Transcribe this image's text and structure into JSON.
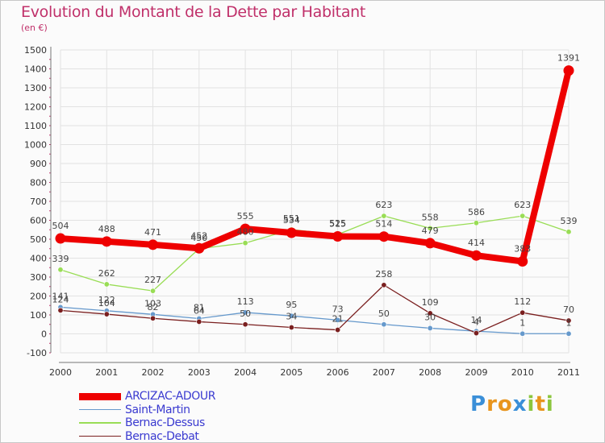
{
  "title": "Evolution du Montant de la Dette par Habitant",
  "unit_label": "(en €)",
  "logo": {
    "text": "Proxiti",
    "letters": [
      "P",
      "r",
      "o",
      "x",
      "i",
      "t",
      "i"
    ],
    "colors": [
      "#3a8fd8",
      "#e8951e",
      "#e8951e",
      "#3a8fd8",
      "#8cc63e",
      "#e8951e",
      "#8cc63e"
    ]
  },
  "chart_data": {
    "type": "line",
    "title": "Evolution du Montant de la Dette par Habitant",
    "ylabel": "(en €)",
    "xlabel": "",
    "x": [
      "2000",
      "2001",
      "2002",
      "2003",
      "2004",
      "2005",
      "2006",
      "2007",
      "2008",
      "2009",
      "2010",
      "2011"
    ],
    "ylim": [
      -100,
      1500
    ],
    "yticks": [
      -100,
      0,
      100,
      200,
      300,
      400,
      500,
      600,
      700,
      800,
      900,
      1000,
      1100,
      1200,
      1300,
      1400,
      1500
    ],
    "grid": true,
    "legend_position": "bottom-left",
    "series": [
      {
        "name": "ARCIZAC-ADOUR",
        "color": "#ee0000",
        "values": [
          504,
          488,
          471,
          452,
          555,
          534,
          515,
          514,
          479,
          414,
          383,
          1391
        ],
        "labels": [
          "504",
          "488",
          "471",
          "452",
          "555",
          "534",
          "515",
          "514",
          "479",
          "414",
          "383",
          "1391"
        ]
      },
      {
        "name": "Saint-Martin",
        "color": "#6699cc",
        "values": [
          141,
          122,
          103,
          81,
          113,
          95,
          73,
          50,
          30,
          14,
          1,
          1
        ],
        "labels": [
          "141",
          "122",
          "103",
          "81",
          "113",
          "95",
          "73",
          "50",
          "30",
          "14",
          "1",
          "1"
        ]
      },
      {
        "name": "Bernac-Dessus",
        "color": "#99dd55",
        "values": [
          339,
          262,
          227,
          450,
          480,
          551,
          525,
          623,
          558,
          586,
          623,
          539
        ],
        "labels": [
          "339",
          "262",
          "227",
          "450",
          "480",
          "551",
          "525",
          "623",
          "558",
          "586",
          "623",
          "539"
        ]
      },
      {
        "name": "Bernac-Debat",
        "color": "#7a1f1f",
        "values": [
          124,
          104,
          82,
          64,
          50,
          34,
          21,
          258,
          109,
          4,
          112,
          70
        ],
        "labels": [
          "124",
          "104",
          "82",
          "64",
          "50",
          "34",
          "21",
          "258",
          "109",
          "4",
          "112",
          "70"
        ]
      }
    ]
  }
}
